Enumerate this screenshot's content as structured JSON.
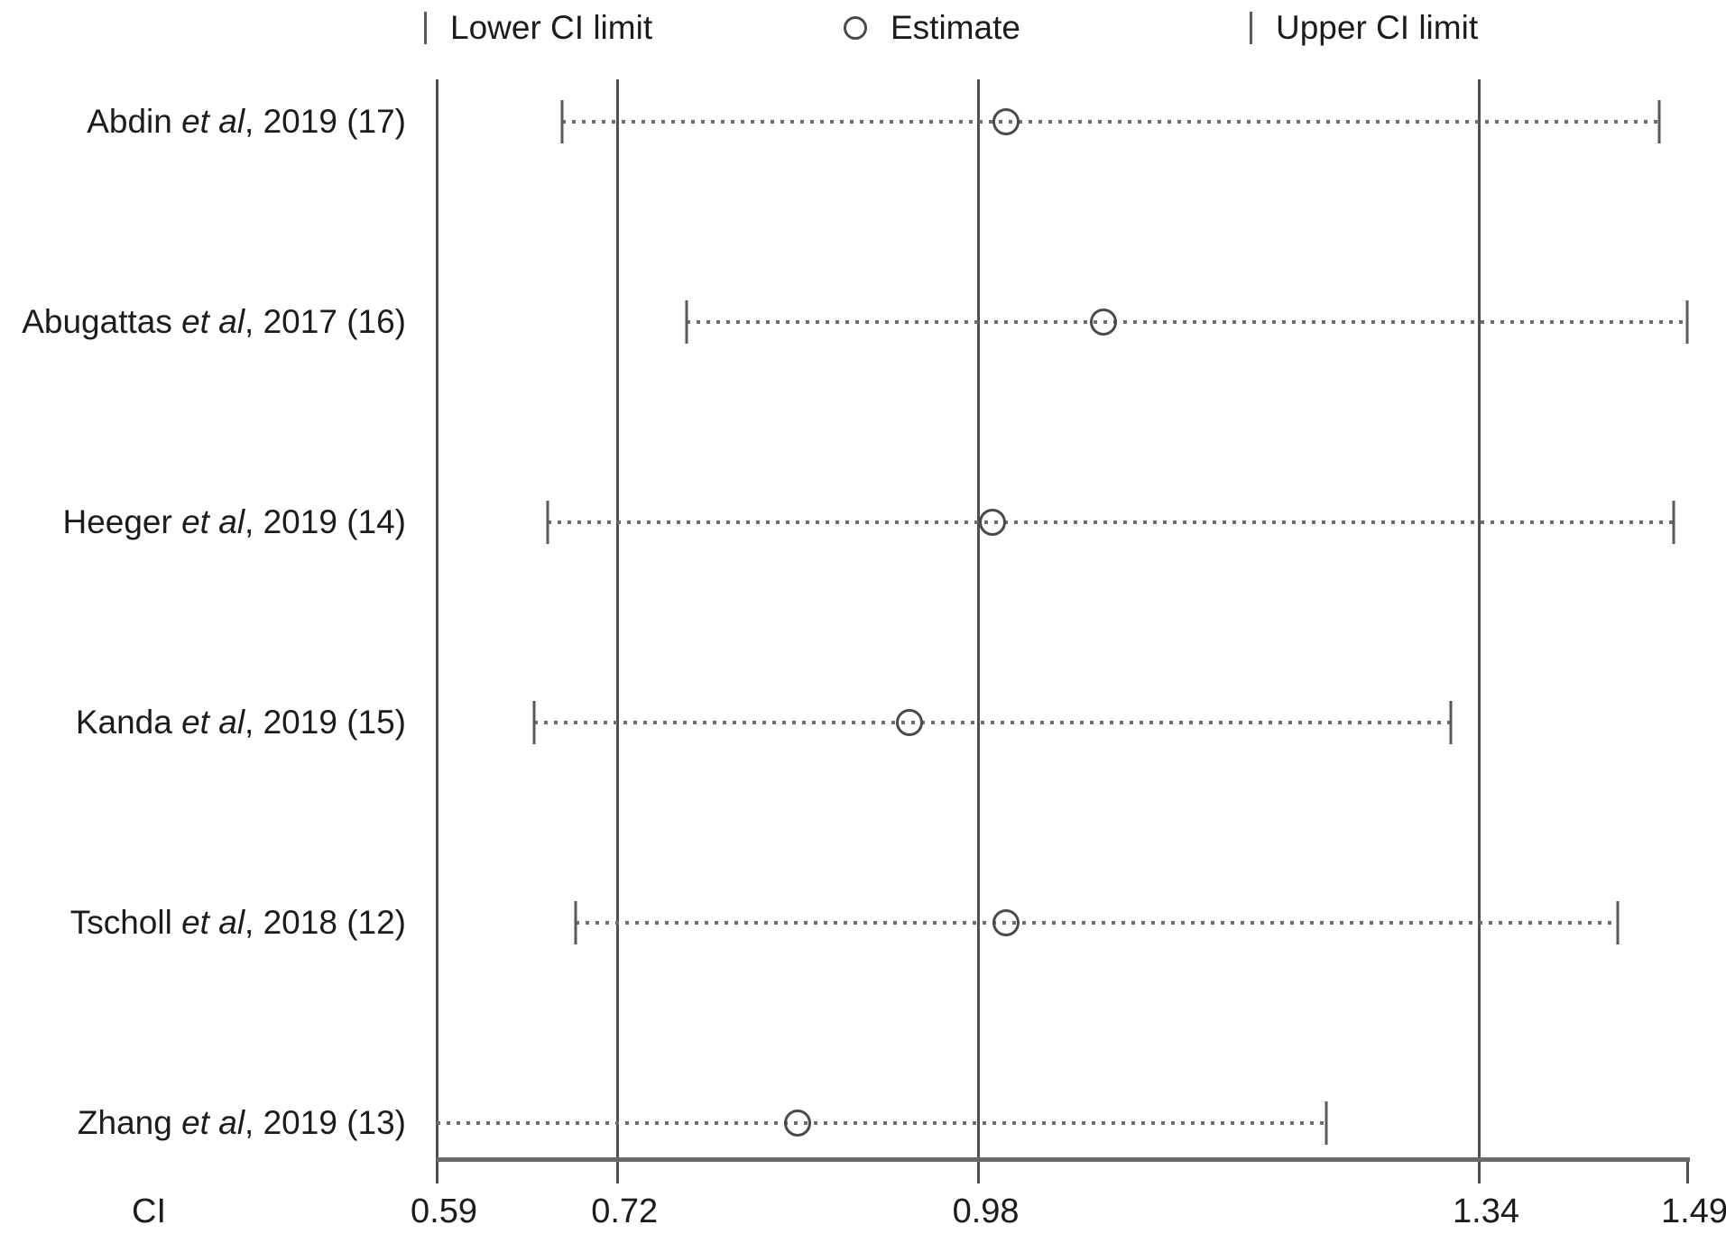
{
  "chart_data": {
    "type": "forest_plot",
    "xlabel": "CI",
    "xlim": [
      0.59,
      1.49
    ],
    "x_ticks": [
      0.59,
      0.72,
      0.98,
      1.34,
      1.49
    ],
    "x_tick_labels": [
      "0.59",
      "0.72",
      "0.98",
      "1.34",
      "1.49"
    ],
    "gridlines": [
      0.59,
      0.72,
      0.98,
      1.34
    ],
    "grid_on": true,
    "legend_position": "top",
    "legend": [
      {
        "symbol": "tick",
        "label": "Lower CI limit"
      },
      {
        "symbol": "circle",
        "label": "Estimate"
      },
      {
        "symbol": "tick",
        "label": "Upper CI limit"
      }
    ],
    "studies": [
      {
        "label_pre": "Abdin",
        "label_italic": "et al",
        "label_post": ", 2019 (17)",
        "lower": 0.68,
        "estimate": 1.0,
        "upper": 1.47
      },
      {
        "label_pre": "Abugattas",
        "label_italic": "et al",
        "label_post": ", 2017 (16)",
        "lower": 0.77,
        "estimate": 1.07,
        "upper": 1.49
      },
      {
        "label_pre": "Heeger",
        "label_italic": "et al",
        "label_post": ", 2019 (14)",
        "lower": 0.67,
        "estimate": 0.99,
        "upper": 1.48
      },
      {
        "label_pre": "Kanda",
        "label_italic": "et al",
        "label_post": ", 2019 (15)",
        "lower": 0.66,
        "estimate": 0.93,
        "upper": 1.32
      },
      {
        "label_pre": "Tscholl",
        "label_italic": "et al",
        "label_post": ", 2018 (12)",
        "lower": 0.69,
        "estimate": 1.0,
        "upper": 1.44
      },
      {
        "label_pre": "Zhang",
        "label_italic": "et al",
        "label_post": ", 2019 (13)",
        "lower": 0.59,
        "estimate": 0.85,
        "upper": 1.23
      }
    ],
    "colors": {
      "text": "#1c1c1c",
      "line": "#6e6e6e",
      "grid": "#4f4f4f",
      "marker": "#4a4a4a",
      "background": "#ffffff"
    }
  }
}
